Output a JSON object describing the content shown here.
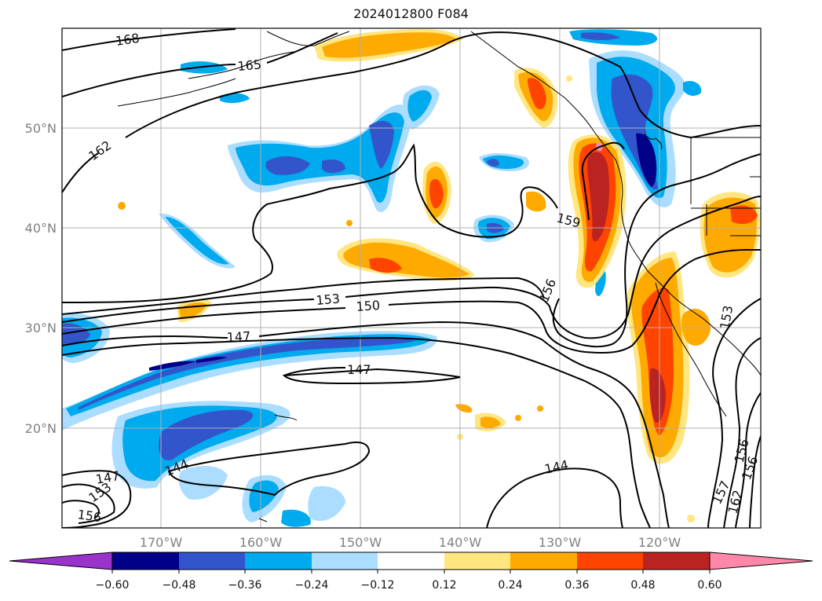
{
  "title": "2024012800 F084",
  "map": {
    "lat_labels": [
      {
        "label": "50°N",
        "lat": 50
      },
      {
        "label": "40°N",
        "lat": 40
      },
      {
        "label": "30°N",
        "lat": 30
      },
      {
        "label": "20°N",
        "lat": 20
      }
    ],
    "lon_labels": [
      {
        "label": "170°W",
        "lon": -170
      },
      {
        "label": "160°W",
        "lon": -160
      },
      {
        "label": "150°W",
        "lon": -150
      },
      {
        "label": "140°W",
        "lon": -140
      },
      {
        "label": "130°W",
        "lon": -130
      },
      {
        "label": "120°W",
        "lon": -120
      }
    ],
    "contour_labels": [
      "168",
      "165",
      "162",
      "159",
      "156",
      "153",
      "150",
      "147",
      "147",
      "144",
      "144",
      "147",
      "153",
      "156",
      "153",
      "156",
      "162",
      "157",
      "156"
    ]
  },
  "colorbar": {
    "ticks": [
      "−0.60",
      "−0.48",
      "−0.36",
      "−0.24",
      "−0.12",
      "0.12",
      "0.24",
      "0.36",
      "0.48",
      "0.60"
    ],
    "colors": [
      "#9933cc",
      "#000088",
      "#3355cc",
      "#00aaee",
      "#aaddff",
      "#ffffff",
      "#ffe680",
      "#ffaa00",
      "#ff4400",
      "#bb2222",
      "#ff88aa"
    ]
  }
}
